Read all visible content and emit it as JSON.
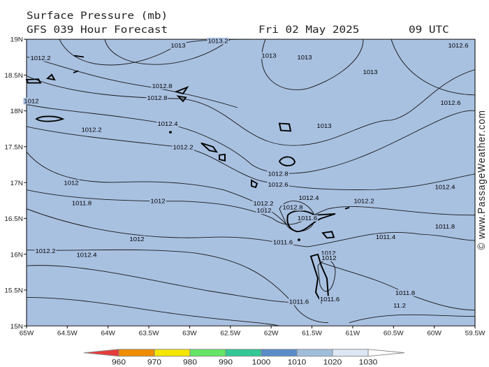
{
  "header": {
    "title": "Surface Pressure (mb)",
    "subtitle": "GFS 039 Hour Forecast",
    "date": "Fri 02 May 2025",
    "time": "09 UTC"
  },
  "axes": {
    "x_labels": [
      "65W",
      "64.5W",
      "64W",
      "63.5W",
      "63W",
      "62.5W",
      "62W",
      "61.5W",
      "61W",
      "60.5W",
      "60W",
      "59.5W"
    ],
    "y_labels": [
      "19N",
      "18.5N",
      "18N",
      "17.5N",
      "17N",
      "16.5N",
      "16N",
      "15.5N",
      "15N"
    ]
  },
  "contour_labels": [
    "1013.2",
    "1013",
    "1012.2",
    "1013",
    "1013",
    "1013",
    "1012.6",
    "1012.8",
    "1012.8",
    "1012",
    "1012.6",
    "1012.4",
    "1012.2",
    "1013",
    "1012.2",
    "1012.8",
    "1012.6",
    "1012",
    "1012.4",
    "1011.8",
    "1012",
    "1012.4",
    "1012.2",
    "1012.2",
    "1012.8",
    "1012",
    "1011.6",
    "1011.8",
    "1012",
    "1011.6",
    "1011.4",
    "1012.2",
    "1012.4",
    "1012",
    "1012",
    "1011.6",
    "1011.8",
    "1011.6",
    "11.2"
  ],
  "colorbar": {
    "labels": [
      960,
      970,
      980,
      990,
      1000,
      1010,
      1020,
      1030
    ]
  },
  "watermark": "© www.PassageWeather.com"
}
